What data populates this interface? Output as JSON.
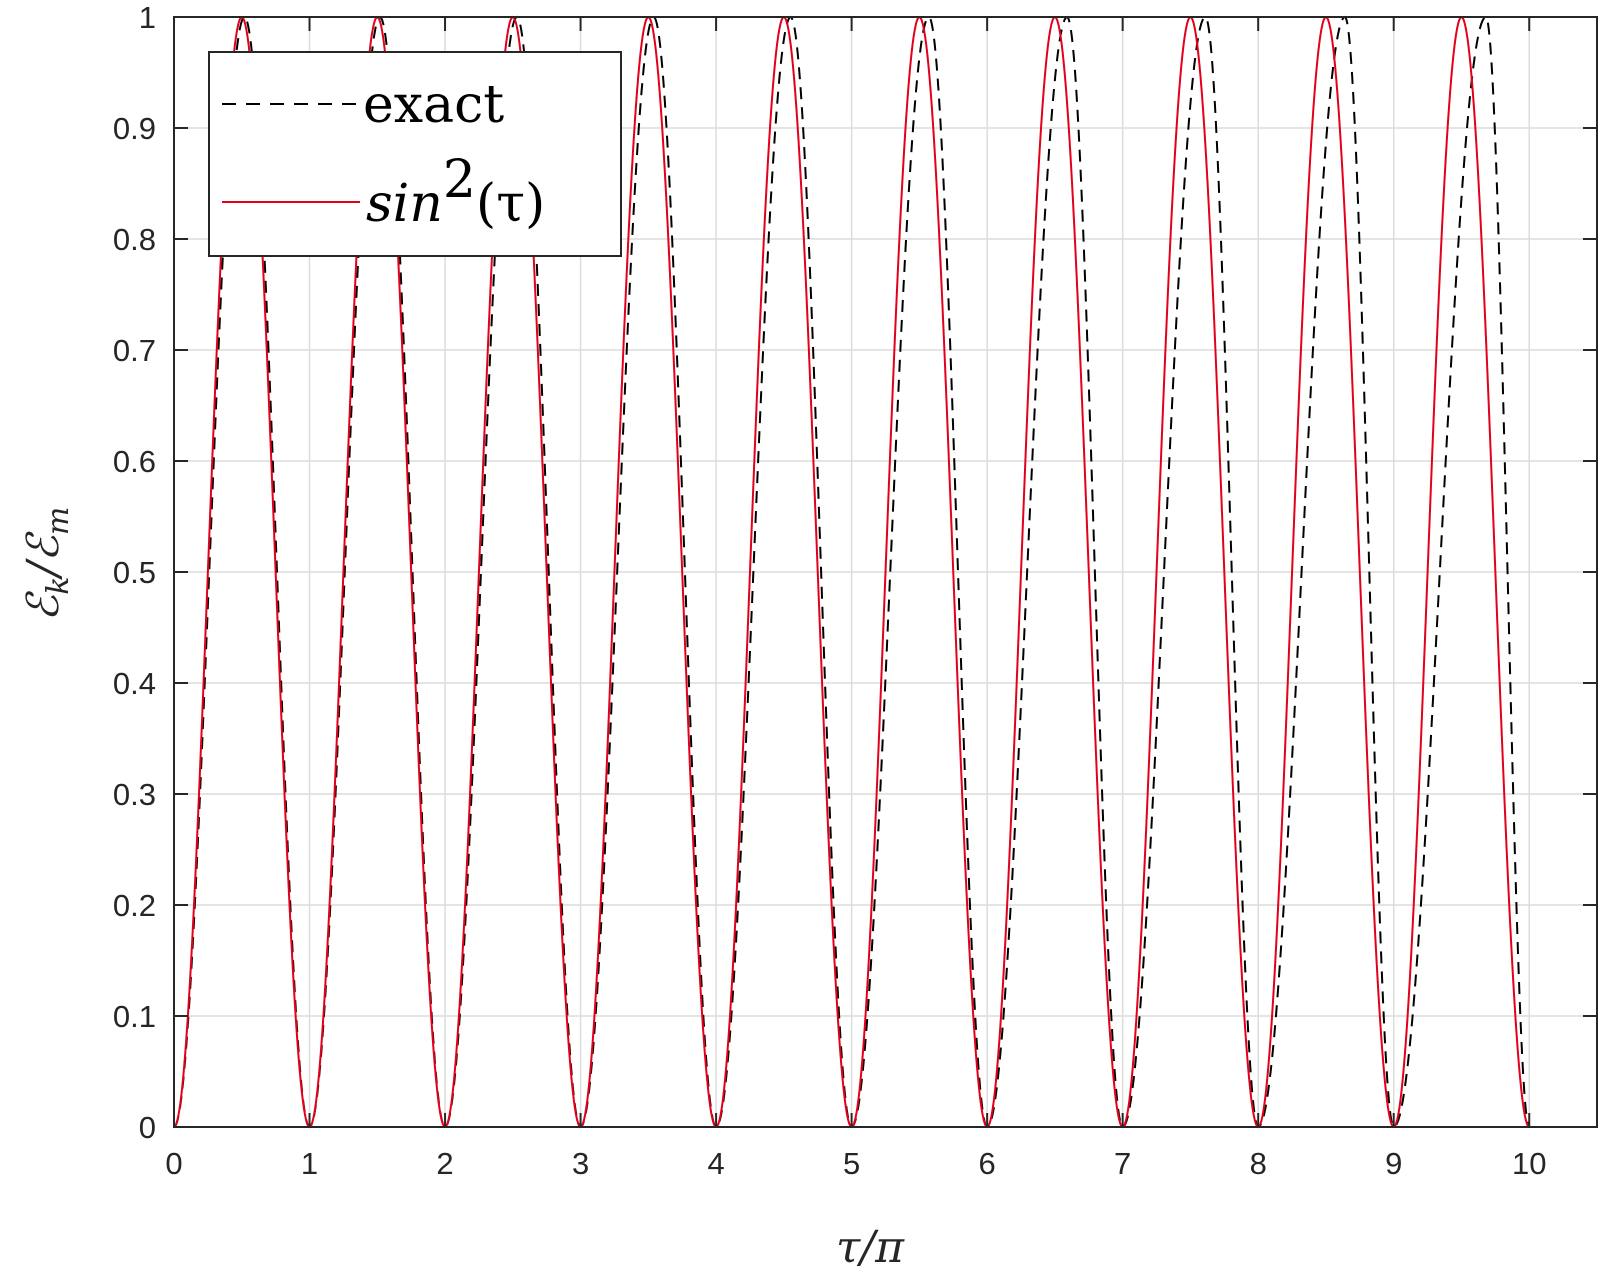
{
  "chart_data": {
    "type": "line",
    "title": "",
    "xlabel": "τ/π",
    "ylabel": "ℰk/ℰm",
    "xlim": [
      0,
      10.5
    ],
    "ylim": [
      0,
      1
    ],
    "x_ticks": [
      "0",
      "1",
      "2",
      "3",
      "4",
      "5",
      "6",
      "7",
      "8",
      "9",
      "10"
    ],
    "y_ticks": [
      "0",
      "0.1",
      "0.2",
      "0.3",
      "0.4",
      "0.5",
      "0.6",
      "0.7",
      "0.8",
      "0.9",
      "1"
    ],
    "grid": true,
    "legend_position": "top-left",
    "series": [
      {
        "name": "exact",
        "style": "dashed",
        "color": "#000000",
        "description_values": {
          "x": [
            0,
            0.52,
            1.0,
            1.52,
            2.0,
            2.53,
            3.0,
            3.54,
            4.0,
            4.55,
            5.0,
            5.57,
            6.0,
            6.59,
            7.0,
            7.61,
            8.0,
            8.64,
            9.0,
            9.68,
            10.0
          ],
          "y": [
            0,
            1,
            0,
            1,
            0,
            1,
            0,
            1,
            0,
            1,
            0,
            1,
            0,
            1,
            0,
            1,
            0,
            1,
            0,
            1,
            0
          ]
        }
      },
      {
        "name": "sin²(τ)",
        "style": "solid",
        "color": "#e3001b",
        "description_values": {
          "x": [
            0,
            0.5,
            1.0,
            1.5,
            2.0,
            2.5,
            3.0,
            3.5,
            4.0,
            4.5,
            5.0,
            5.5,
            6.0,
            6.5,
            7.0,
            7.5,
            8.0,
            8.5,
            9.0,
            9.5,
            10.0
          ],
          "y": [
            0,
            1,
            0,
            1,
            0,
            1,
            0,
            1,
            0,
            1,
            0,
            1,
            0,
            1,
            0,
            1,
            0,
            1,
            0,
            1,
            0
          ]
        }
      }
    ]
  },
  "legend": {
    "exact_label": "exact",
    "sin_label_base": "sin",
    "sin_label_exp": "2",
    "sin_label_arg": "(τ)"
  },
  "axes": {
    "xlabel_text": "τ/π",
    "ylabel_main_1": "ℰ",
    "ylabel_sub_1": "k",
    "ylabel_slash": "/",
    "ylabel_main_2": "ℰ",
    "ylabel_sub_2": "m"
  }
}
